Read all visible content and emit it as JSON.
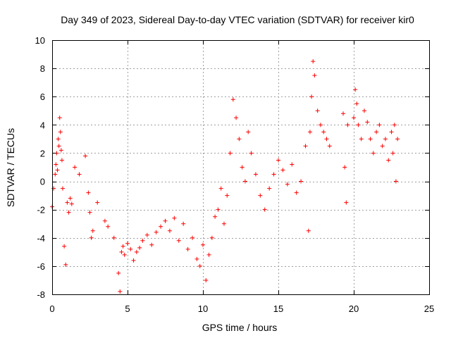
{
  "chart_data": {
    "type": "scatter",
    "title": "Day 349 of 2023, Sidereal Day-to-day VTEC variation (SDTVAR) for receiver kir0",
    "xlabel": "GPS time / hours",
    "ylabel": "SDTVAR / TECUs",
    "xlim": [
      0,
      25
    ],
    "ylim": [
      -8,
      10
    ],
    "xticks": [
      0,
      5,
      10,
      15,
      20,
      25
    ],
    "yticks": [
      -8,
      -6,
      -4,
      -2,
      0,
      2,
      4,
      6,
      8,
      10
    ],
    "grid": true,
    "marker": "+",
    "color": "#ff0000",
    "series": [
      {
        "name": "SDTVAR",
        "x": [
          0.0,
          0.1,
          0.2,
          0.25,
          0.3,
          0.35,
          0.4,
          0.45,
          0.5,
          0.55,
          0.6,
          0.65,
          0.7,
          0.8,
          0.9,
          1.0,
          1.1,
          1.2,
          1.3,
          1.5,
          1.8,
          2.2,
          2.4,
          2.5,
          2.6,
          2.7,
          3.0,
          3.5,
          3.7,
          4.1,
          4.4,
          4.5,
          4.6,
          4.7,
          4.8,
          5.0,
          5.2,
          5.4,
          5.6,
          5.8,
          6.0,
          6.3,
          6.6,
          6.9,
          7.2,
          7.5,
          7.8,
          8.1,
          8.4,
          8.7,
          9.0,
          9.3,
          9.6,
          9.8,
          10.0,
          10.2,
          10.4,
          10.6,
          10.8,
          11.0,
          11.2,
          11.4,
          11.6,
          11.8,
          12.0,
          12.2,
          12.4,
          12.6,
          12.8,
          13.0,
          13.2,
          13.5,
          13.8,
          14.1,
          14.4,
          14.7,
          15.0,
          15.3,
          15.6,
          15.9,
          16.2,
          16.5,
          16.8,
          17.0,
          17.1,
          17.2,
          17.3,
          17.4,
          17.6,
          17.8,
          18.0,
          18.2,
          18.4,
          19.3,
          19.4,
          19.5,
          19.6,
          20.0,
          20.1,
          20.2,
          20.3,
          20.5,
          20.7,
          20.9,
          21.1,
          21.3,
          21.5,
          21.7,
          21.9,
          22.1,
          22.3,
          22.5,
          22.6,
          22.7,
          22.8,
          22.9
        ],
        "y": [
          -1.8,
          -0.5,
          0.5,
          1.2,
          2.0,
          0.8,
          3.0,
          2.5,
          4.5,
          3.5,
          2.2,
          1.5,
          -0.5,
          -4.6,
          -5.9,
          -1.5,
          -2.2,
          -1.2,
          -1.6,
          1.0,
          0.5,
          1.8,
          -0.8,
          -2.2,
          -4.0,
          -3.5,
          -1.5,
          -2.8,
          -3.2,
          -4.0,
          -6.5,
          -7.8,
          -5.0,
          -4.6,
          -5.2,
          -4.4,
          -4.8,
          -5.6,
          -5.0,
          -4.7,
          -4.2,
          -3.8,
          -4.5,
          -3.6,
          -3.2,
          -2.8,
          -3.5,
          -2.6,
          -4.2,
          -3.0,
          -4.8,
          -4.0,
          -5.5,
          -6.0,
          -4.5,
          -7.0,
          -5.2,
          -4.0,
          -2.5,
          -2.0,
          -0.5,
          -3.0,
          -1.0,
          2.0,
          5.8,
          4.5,
          3.0,
          1.0,
          0.0,
          3.5,
          2.0,
          0.5,
          -1.0,
          -2.0,
          -0.5,
          0.5,
          1.5,
          0.8,
          -0.2,
          1.2,
          -0.8,
          0.0,
          2.5,
          -3.5,
          3.5,
          6.0,
          8.5,
          7.5,
          5.0,
          4.0,
          3.5,
          3.0,
          2.5,
          4.8,
          1.0,
          -1.5,
          4.0,
          4.5,
          6.5,
          5.5,
          4.0,
          3.0,
          5.0,
          4.2,
          3.0,
          2.0,
          3.5,
          4.0,
          2.5,
          3.0,
          1.5,
          3.5,
          2.0,
          4.0,
          0.0,
          3.0
        ]
      }
    ]
  }
}
